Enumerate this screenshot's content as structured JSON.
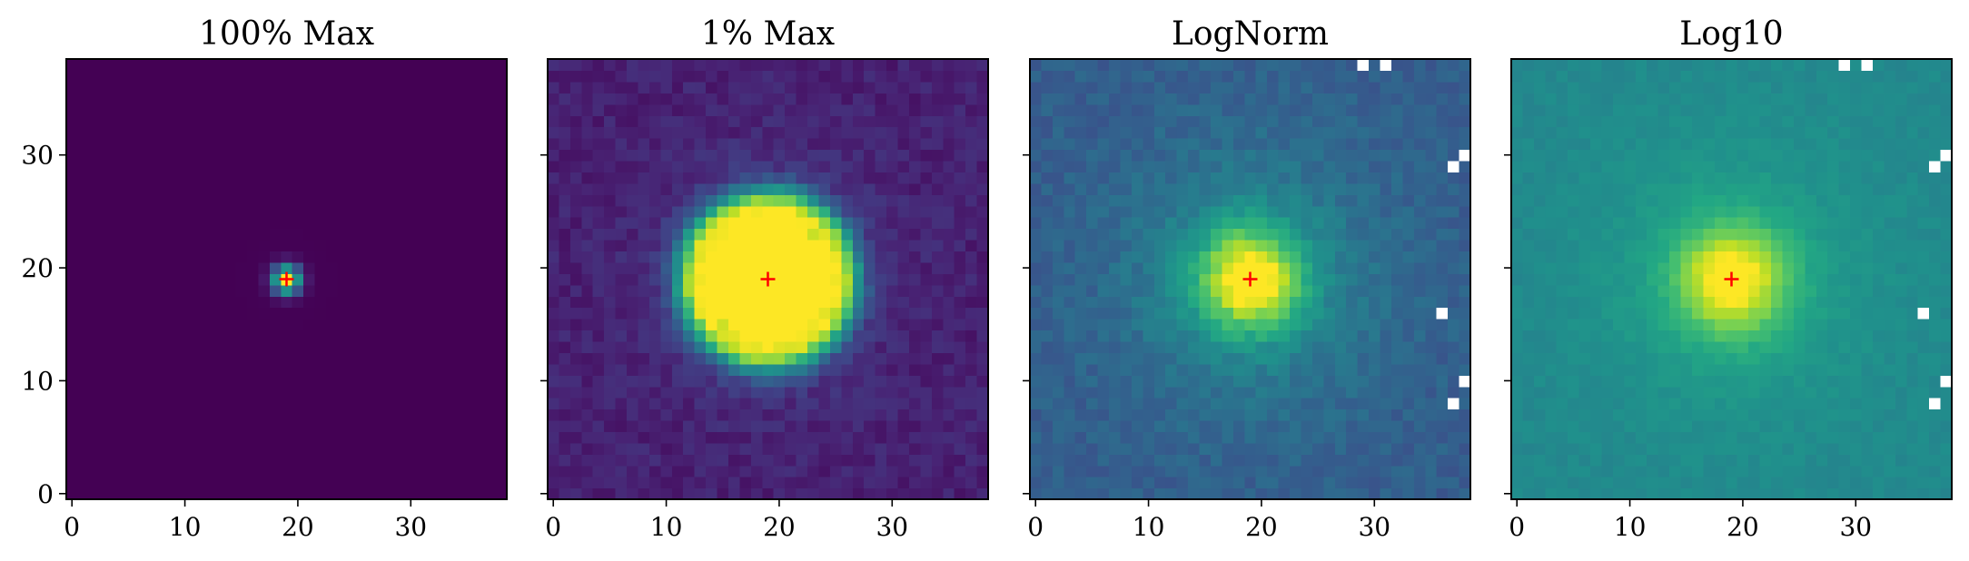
{
  "figure": {
    "colormap": "viridis",
    "background": "#ffffff",
    "marker_color": "#ff0000",
    "masked_color": "#ffffff"
  },
  "chart_data": [
    {
      "type": "heatmap",
      "title": "100% Max",
      "scale": "linear",
      "vmax_fraction": 1.0,
      "grid_size": 39,
      "extent": [
        -0.5,
        38.5
      ],
      "xticks": [
        "0",
        "10",
        "20",
        "30"
      ],
      "yticks": [
        "0",
        "10",
        "20",
        "30"
      ],
      "show_ytick_labels": true,
      "peak": {
        "x": 19,
        "y": 19
      },
      "marker": {
        "x": 19,
        "y": 19,
        "symbol": "+"
      },
      "masked_pixels": []
    },
    {
      "type": "heatmap",
      "title": "1% Max",
      "scale": "linear",
      "vmax_fraction": 0.01,
      "grid_size": 39,
      "extent": [
        -0.5,
        38.5
      ],
      "xticks": [
        "0",
        "10",
        "20",
        "30"
      ],
      "yticks": [
        "0",
        "10",
        "20",
        "30"
      ],
      "show_ytick_labels": false,
      "peak": {
        "x": 19,
        "y": 19
      },
      "marker": {
        "x": 19,
        "y": 19,
        "symbol": "+"
      },
      "masked_pixels": []
    },
    {
      "type": "heatmap",
      "title": "LogNorm",
      "scale": "log",
      "grid_size": 39,
      "extent": [
        -0.5,
        38.5
      ],
      "xticks": [
        "0",
        "10",
        "20",
        "30"
      ],
      "yticks": [
        "0",
        "10",
        "20",
        "30"
      ],
      "show_ytick_labels": false,
      "peak": {
        "x": 19,
        "y": 19
      },
      "marker": {
        "x": 19,
        "y": 19,
        "symbol": "+"
      },
      "masked_pixels": [
        [
          29,
          38
        ],
        [
          31,
          38
        ],
        [
          38,
          30
        ],
        [
          37,
          29
        ],
        [
          36,
          16
        ],
        [
          38,
          10
        ],
        [
          37,
          8
        ]
      ]
    },
    {
      "type": "heatmap",
      "title": "Log10",
      "scale": "log10",
      "grid_size": 39,
      "extent": [
        -0.5,
        38.5
      ],
      "xticks": [
        "0",
        "10",
        "20",
        "30"
      ],
      "yticks": [
        "0",
        "10",
        "20",
        "30"
      ],
      "show_ytick_labels": false,
      "peak": {
        "x": 19,
        "y": 19
      },
      "marker": {
        "x": 19,
        "y": 19,
        "symbol": "+"
      },
      "masked_pixels": [
        [
          29,
          38
        ],
        [
          31,
          38
        ],
        [
          38,
          30
        ],
        [
          37,
          29
        ],
        [
          36,
          16
        ],
        [
          38,
          10
        ],
        [
          37,
          8
        ]
      ]
    }
  ]
}
